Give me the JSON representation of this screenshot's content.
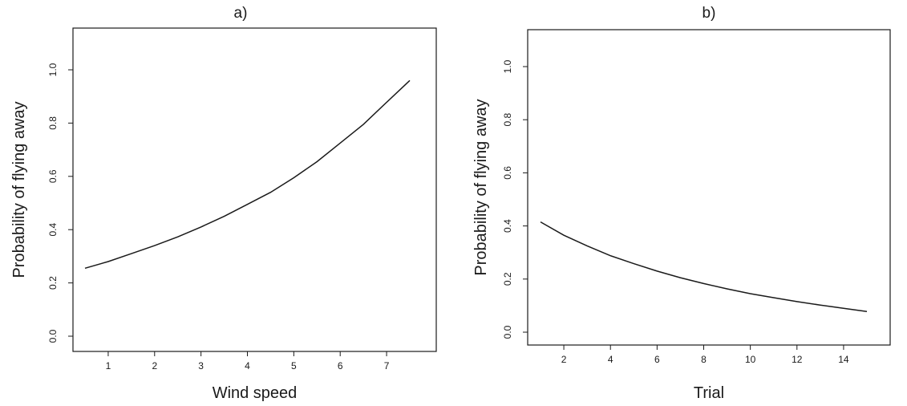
{
  "chart_data": [
    {
      "type": "line",
      "title": "a)",
      "xlabel": "Wind speed",
      "ylabel": "Probability of flying away",
      "xlim": [
        0.5,
        7.5
      ],
      "ylim": [
        0.0,
        1.0
      ],
      "xticks": [
        "1",
        "2",
        "3",
        "4",
        "5",
        "6",
        "7"
      ],
      "yticks": [
        "0.0",
        "0.2",
        "0.4",
        "0.6",
        "0.8",
        "1.0"
      ],
      "grid": false,
      "series": [
        {
          "x": [
            0.5,
            1.0,
            1.5,
            2.0,
            2.5,
            3.0,
            3.5,
            4.0,
            4.5,
            5.0,
            5.5,
            6.0,
            6.5,
            7.0,
            7.5
          ],
          "values": [
            0.255,
            0.28,
            0.31,
            0.34,
            0.373,
            0.41,
            0.45,
            0.495,
            0.54,
            0.595,
            0.655,
            0.725,
            0.795,
            0.878,
            0.96
          ]
        }
      ]
    },
    {
      "type": "line",
      "title": "b)",
      "xlabel": "Trial",
      "ylabel": "Probability of flying away",
      "xlim": [
        1,
        15
      ],
      "ylim": [
        0.0,
        1.0
      ],
      "xticks": [
        "2",
        "4",
        "6",
        "8",
        "10",
        "12",
        "14"
      ],
      "yticks": [
        "0.0",
        "0.2",
        "0.4",
        "0.6",
        "0.8",
        "1.0"
      ],
      "grid": false,
      "series": [
        {
          "x": [
            1,
            2,
            3,
            4,
            5,
            6,
            7,
            8,
            9,
            10,
            11,
            12,
            13,
            14,
            15
          ],
          "values": [
            0.415,
            0.365,
            0.325,
            0.288,
            0.258,
            0.23,
            0.205,
            0.183,
            0.163,
            0.145,
            0.13,
            0.115,
            0.102,
            0.09,
            0.078
          ]
        }
      ]
    }
  ]
}
